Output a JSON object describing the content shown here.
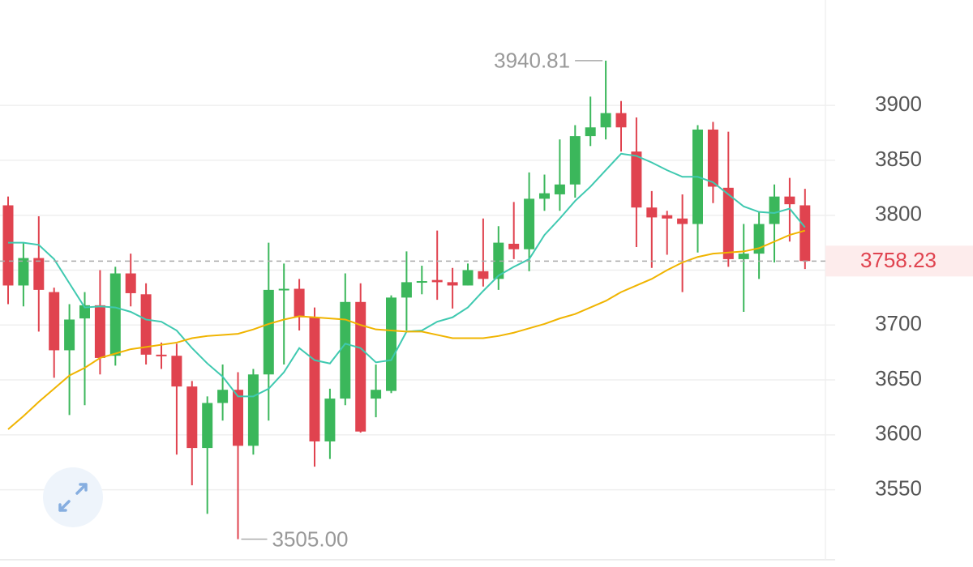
{
  "chart_data": {
    "type": "candlestick",
    "up_color": "#3bb75b",
    "down_color": "#e0434f",
    "open": [
      3809,
      3736,
      3761,
      3730,
      3677,
      3706,
      3718,
      3672,
      3747,
      3728,
      3673,
      3672,
      3644,
      3588,
      3629,
      3641,
      3590,
      3655,
      3732,
      3733,
      3707,
      3594,
      3633,
      3721,
      3633,
      3640,
      3725,
      3739,
      3741,
      3739,
      3736,
      3749,
      3742,
      3774,
      3769,
      3815,
      3819,
      3828,
      3872,
      3880,
      3893,
      3858,
      3807,
      3800,
      3797,
      3792,
      3878,
      3825,
      3760,
      3765,
      3792,
      3817,
      3809
    ],
    "high": [
      3817,
      3775,
      3799,
      3734,
      3719,
      3730,
      3750,
      3753,
      3765,
      3738,
      3684,
      3683,
      3649,
      3635,
      3664,
      3657,
      3660,
      3775,
      3756,
      3742,
      3716,
      3642,
      3747,
      3738,
      3664,
      3727,
      3767,
      3754,
      3786,
      3752,
      3756,
      3797,
      3790,
      3812,
      3839,
      3837,
      3869,
      3882,
      3908,
      3940.81,
      3904,
      3889,
      3822,
      3804,
      3819,
      3882,
      3885,
      3876,
      3792,
      3803,
      3828,
      3834,
      3824
    ],
    "low": [
      3719,
      3717,
      3694,
      3652,
      3618,
      3627,
      3655,
      3663,
      3717,
      3664,
      3660,
      3582,
      3554,
      3528,
      3613,
      3505,
      3582,
      3613,
      3664,
      3695,
      3571,
      3578,
      3627,
      3602,
      3616,
      3638,
      3695,
      3728,
      3723,
      3715,
      3736,
      3735,
      3732,
      3760,
      3749,
      3804,
      3804,
      3816,
      3863,
      3869,
      3858,
      3771,
      3752,
      3764,
      3730,
      3766,
      3811,
      3753,
      3712,
      3742,
      3757,
      3776,
      3751
    ],
    "close": [
      3736,
      3761,
      3732,
      3677,
      3705,
      3718,
      3670,
      3747,
      3729,
      3673,
      3672,
      3644,
      3588,
      3629,
      3641,
      3590,
      3655,
      3732,
      3733,
      3707,
      3594,
      3633,
      3721,
      3603,
      3641,
      3725,
      3739,
      3740,
      3739,
      3736,
      3750,
      3742,
      3775,
      3769,
      3815,
      3820,
      3828,
      3872,
      3880,
      3893,
      3880,
      3807,
      3798,
      3797,
      3792,
      3878,
      3826,
      3760,
      3765,
      3792,
      3817,
      3810,
      3758.23
    ],
    "moving_averages": [
      {
        "color": "#3fc9b0",
        "values": [
          3775,
          3775,
          3773,
          3760,
          3738,
          3716,
          3717,
          3716,
          3712,
          3705,
          3703,
          3695,
          3679,
          3665,
          3653,
          3635,
          3635,
          3642,
          3657,
          3679,
          3668,
          3665,
          3683,
          3679,
          3666,
          3668,
          3694,
          3695,
          3703,
          3707,
          3716,
          3731,
          3745,
          3753,
          3760,
          3782,
          3797,
          3813,
          3826,
          3841,
          3856,
          3854,
          3848,
          3841,
          3835,
          3835,
          3830,
          3819,
          3808,
          3803,
          3802,
          3806,
          3789
        ]
      },
      {
        "color": "#f0b400",
        "values": [
          3605,
          3617,
          3630,
          3642,
          3654,
          3661,
          3670,
          3674,
          3678,
          3680,
          3682,
          3684,
          3688,
          3690,
          3691,
          3692,
          3696,
          3701,
          3705,
          3708,
          3707,
          3706,
          3705,
          3700,
          3696,
          3695,
          3694,
          3694,
          3691,
          3688,
          3688,
          3688,
          3690,
          3693,
          3697,
          3701,
          3706,
          3710,
          3716,
          3722,
          3730,
          3736,
          3742,
          3750,
          3757,
          3762,
          3765,
          3766,
          3767,
          3770,
          3776,
          3782,
          3786
        ]
      }
    ],
    "max_label": "3940.81",
    "min_label": "3505.00",
    "last_price_label": "3758.23",
    "ylim": [
      3487,
      3996
    ],
    "yticks": [
      3550,
      3600,
      3650,
      3700,
      3750,
      3800,
      3850,
      3900
    ],
    "grid": true
  }
}
